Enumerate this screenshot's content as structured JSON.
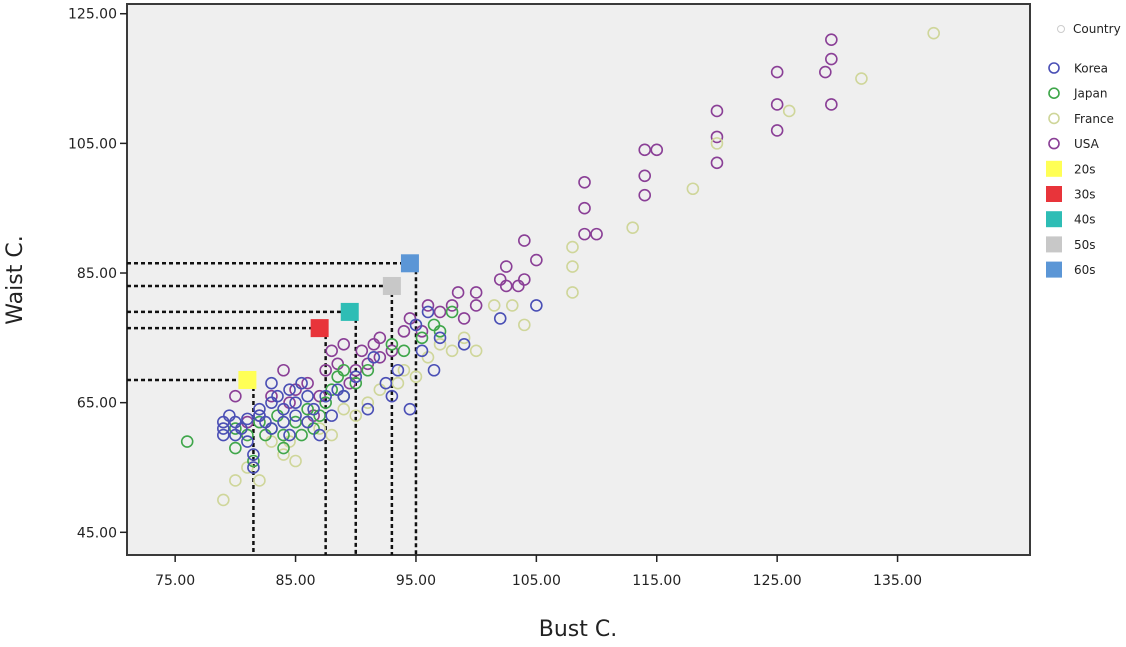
{
  "chart_data": {
    "type": "scatter",
    "title": "",
    "xlabel": "Bust  C.",
    "ylabel": "Waist C.",
    "xlim": [
      71,
      146
    ],
    "ylim": [
      41.5,
      126.5
    ],
    "x_ticks": [
      75,
      85,
      95,
      105,
      115,
      125,
      135
    ],
    "y_ticks": [
      45,
      65,
      85,
      105,
      125
    ],
    "x_tick_labels": [
      "75.00",
      "85.00",
      "95.00",
      "105.00",
      "115.00",
      "125.00",
      "135.00"
    ],
    "y_tick_labels": [
      "45.00",
      "65.00",
      "85.00",
      "105.00",
      "125.00"
    ],
    "grid": false,
    "plot_background": "#efefef",
    "legend_position": "right",
    "legend_title": "Country",
    "colors": {
      "Korea": "#4a4fb5",
      "Japan": "#3fa64a",
      "France": "#cfd69a",
      "USA": "#8a3f96",
      "20s": "#ffff55",
      "30s": "#e8343a",
      "40s": "#2ebdb5",
      "50s": "#c8c8c8",
      "60s": "#5b96d6"
    },
    "series": [
      {
        "name": "Korea",
        "marker": "circle",
        "points": [
          [
            79,
            60
          ],
          [
            79,
            61
          ],
          [
            79,
            62
          ],
          [
            79.5,
            63
          ],
          [
            80,
            60
          ],
          [
            80,
            62
          ],
          [
            80.5,
            61
          ],
          [
            81,
            62.5
          ],
          [
            81,
            59
          ],
          [
            81.5,
            57
          ],
          [
            81.5,
            55
          ],
          [
            82,
            63
          ],
          [
            82,
            64
          ],
          [
            82.5,
            62
          ],
          [
            83,
            65
          ],
          [
            83,
            61
          ],
          [
            83,
            68
          ],
          [
            83.5,
            66
          ],
          [
            84,
            64
          ],
          [
            84,
            62
          ],
          [
            84.5,
            60
          ],
          [
            84.5,
            67
          ],
          [
            85,
            65
          ],
          [
            85,
            63
          ],
          [
            85.5,
            68
          ],
          [
            86,
            62
          ],
          [
            86,
            66
          ],
          [
            86.5,
            64
          ],
          [
            87,
            60
          ],
          [
            87.5,
            66
          ],
          [
            88,
            63
          ],
          [
            88.5,
            67
          ],
          [
            89,
            66
          ],
          [
            90,
            69
          ],
          [
            91,
            64
          ],
          [
            91.5,
            72
          ],
          [
            92.5,
            68
          ],
          [
            93,
            66
          ],
          [
            93.5,
            70
          ],
          [
            94.5,
            64
          ],
          [
            95,
            77
          ],
          [
            95.5,
            73
          ],
          [
            96,
            79
          ],
          [
            96.5,
            70
          ],
          [
            97,
            75
          ],
          [
            99,
            74
          ],
          [
            102,
            78
          ],
          [
            105,
            80
          ]
        ]
      },
      {
        "name": "Japan",
        "marker": "circle",
        "points": [
          [
            76,
            59
          ],
          [
            80,
            58
          ],
          [
            80,
            61
          ],
          [
            81,
            60
          ],
          [
            81.5,
            56
          ],
          [
            82,
            62
          ],
          [
            82.5,
            60
          ],
          [
            83,
            61
          ],
          [
            83.5,
            63
          ],
          [
            84,
            60
          ],
          [
            84,
            58
          ],
          [
            85,
            62
          ],
          [
            85.5,
            60
          ],
          [
            86,
            64
          ],
          [
            86.5,
            61
          ],
          [
            87,
            63
          ],
          [
            87.5,
            65
          ],
          [
            88,
            67
          ],
          [
            88.5,
            69
          ],
          [
            89,
            66
          ],
          [
            89,
            70
          ],
          [
            90,
            68
          ],
          [
            91,
            70
          ],
          [
            93,
            74
          ],
          [
            94,
            73
          ],
          [
            95.5,
            75
          ],
          [
            96.5,
            77
          ],
          [
            97,
            76
          ],
          [
            98,
            79
          ]
        ]
      },
      {
        "name": "France",
        "marker": "circle",
        "points": [
          [
            79,
            50
          ],
          [
            80,
            53
          ],
          [
            81,
            55
          ],
          [
            82,
            53
          ],
          [
            83,
            59
          ],
          [
            84,
            57
          ],
          [
            84.5,
            59
          ],
          [
            85,
            56
          ],
          [
            86,
            62
          ],
          [
            87,
            61
          ],
          [
            88,
            60
          ],
          [
            89,
            64
          ],
          [
            90,
            63
          ],
          [
            91,
            65
          ],
          [
            92,
            67
          ],
          [
            93.5,
            68
          ],
          [
            94,
            70
          ],
          [
            95,
            69
          ],
          [
            96,
            72
          ],
          [
            97,
            74
          ],
          [
            98,
            73
          ],
          [
            99,
            75
          ],
          [
            100,
            73
          ],
          [
            101.5,
            80
          ],
          [
            103,
            80
          ],
          [
            104,
            77
          ],
          [
            108,
            89
          ],
          [
            108,
            86
          ],
          [
            108,
            82
          ],
          [
            113,
            92
          ],
          [
            118,
            98
          ],
          [
            120,
            105
          ],
          [
            126,
            110
          ],
          [
            132,
            115
          ],
          [
            138,
            122
          ]
        ]
      },
      {
        "name": "USA",
        "marker": "circle",
        "points": [
          [
            80,
            66
          ],
          [
            81,
            62
          ],
          [
            82,
            63
          ],
          [
            83,
            66
          ],
          [
            84,
            70
          ],
          [
            84.5,
            65
          ],
          [
            85,
            67
          ],
          [
            86,
            68
          ],
          [
            86.5,
            63
          ],
          [
            87,
            66
          ],
          [
            87.5,
            70
          ],
          [
            88,
            73
          ],
          [
            88.5,
            71
          ],
          [
            89,
            74
          ],
          [
            89.5,
            68
          ],
          [
            90,
            70
          ],
          [
            90.5,
            73
          ],
          [
            91,
            71
          ],
          [
            91.5,
            74
          ],
          [
            92,
            72
          ],
          [
            92,
            75
          ],
          [
            93,
            73
          ],
          [
            94,
            76
          ],
          [
            94.5,
            78
          ],
          [
            95.5,
            76
          ],
          [
            96,
            80
          ],
          [
            97,
            79
          ],
          [
            98,
            80
          ],
          [
            98.5,
            82
          ],
          [
            99,
            78
          ],
          [
            100,
            80
          ],
          [
            100,
            82
          ],
          [
            102,
            84
          ],
          [
            102.5,
            83
          ],
          [
            102.5,
            86
          ],
          [
            103.5,
            83
          ],
          [
            104,
            84
          ],
          [
            104,
            90
          ],
          [
            105,
            87
          ],
          [
            109,
            99
          ],
          [
            109,
            95
          ],
          [
            109,
            91
          ],
          [
            110,
            91
          ],
          [
            114,
            104
          ],
          [
            114,
            100
          ],
          [
            114,
            97
          ],
          [
            115,
            104
          ],
          [
            120,
            110
          ],
          [
            120,
            106
          ],
          [
            120,
            102
          ],
          [
            125,
            116
          ],
          [
            125,
            111
          ],
          [
            125,
            107
          ],
          [
            129,
            116
          ],
          [
            129.5,
            111
          ],
          [
            129.5,
            118
          ],
          [
            129.5,
            121
          ]
        ]
      },
      {
        "name": "20s",
        "marker": "square",
        "points": [
          [
            81,
            68.5
          ]
        ]
      },
      {
        "name": "30s",
        "marker": "square",
        "points": [
          [
            87,
            76.5
          ]
        ]
      },
      {
        "name": "40s",
        "marker": "square",
        "points": [
          [
            89.5,
            79
          ]
        ]
      },
      {
        "name": "50s",
        "marker": "square",
        "points": [
          [
            93,
            83
          ]
        ]
      },
      {
        "name": "60s",
        "marker": "square",
        "points": [
          [
            94.5,
            86.5
          ]
        ]
      }
    ],
    "reference_lines": [
      {
        "name": "20s",
        "x": 81.5,
        "y": 68.5
      },
      {
        "name": "30s",
        "x": 87.5,
        "y": 76.5
      },
      {
        "name": "40s",
        "x": 90,
        "y": 79
      },
      {
        "name": "50s",
        "x": 93,
        "y": 83
      },
      {
        "name": "60s",
        "x": 95,
        "y": 86.5
      }
    ]
  }
}
